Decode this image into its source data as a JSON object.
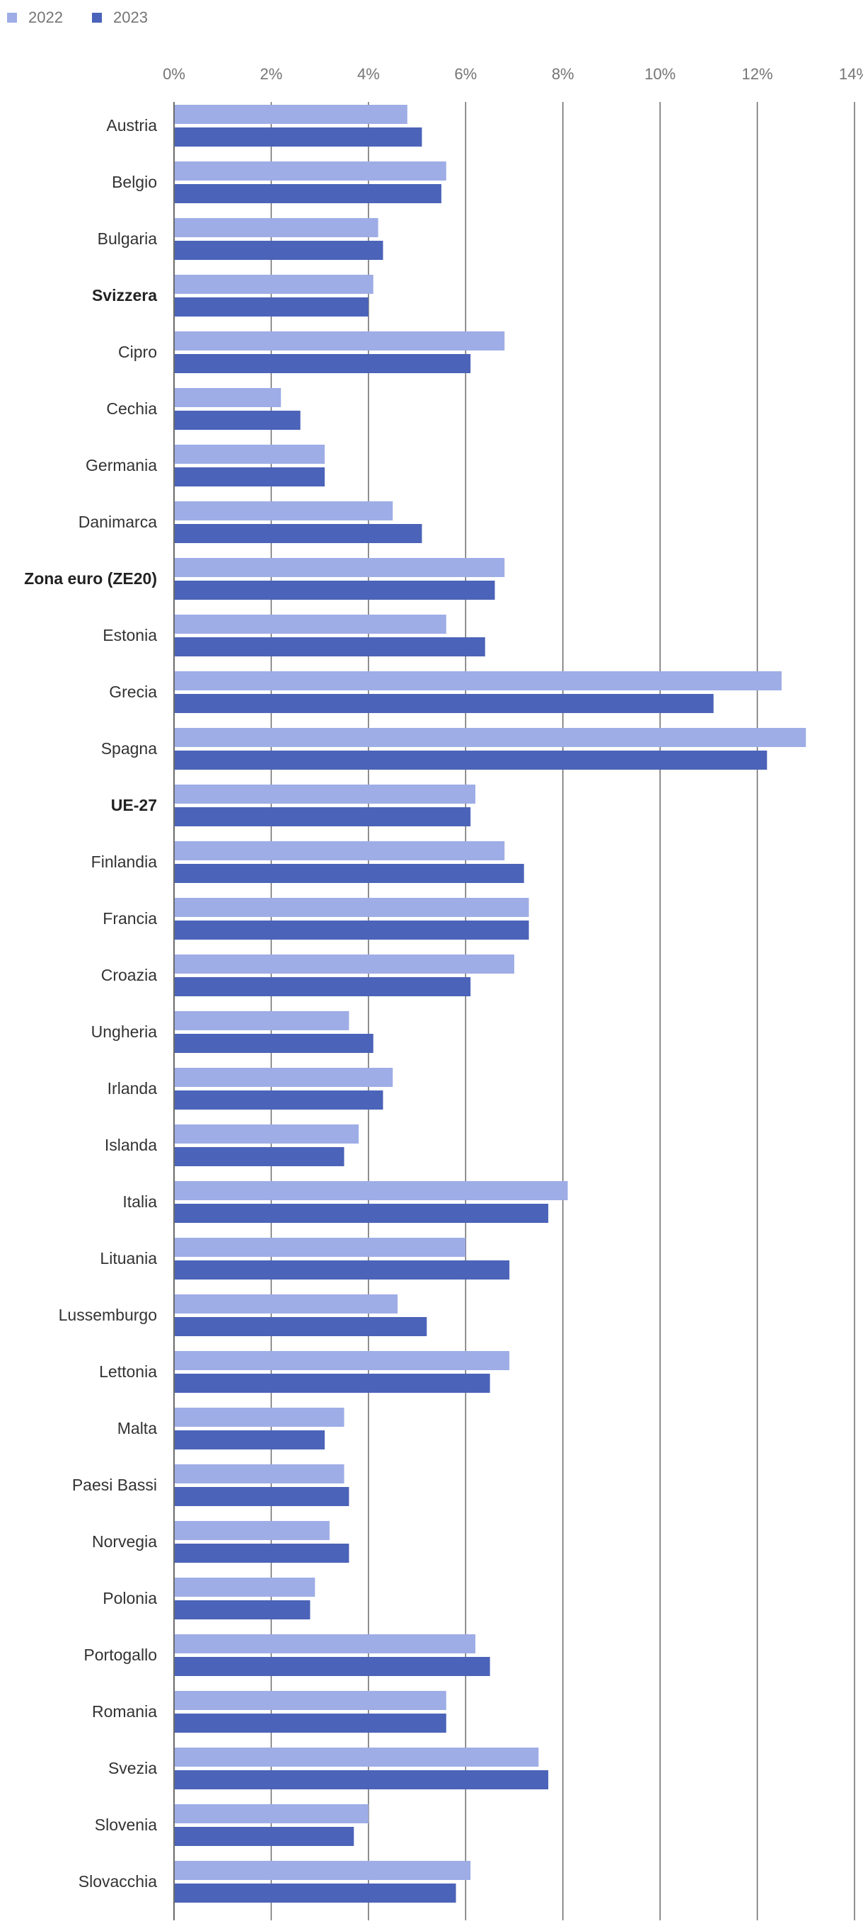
{
  "chart_data": {
    "type": "bar",
    "orientation": "horizontal",
    "title": "",
    "xlabel": "",
    "ylabel": "",
    "xlim": [
      0,
      14
    ],
    "x_ticks": [
      "0%",
      "2%",
      "4%",
      "6%",
      "8%",
      "10%",
      "12%",
      "14%"
    ],
    "legend": [
      "2022",
      "2023"
    ],
    "legend_position": "top-left",
    "colors": {
      "2022": "#9eade6",
      "2023": "#4b63b8",
      "grid": "#6b6b6b"
    },
    "categories": [
      "Austria",
      "Belgio",
      "Bulgaria",
      "Svizzera",
      "Cipro",
      "Cechia",
      "Germania",
      "Danimarca",
      "Zona euro (ZE20)",
      "Estonia",
      "Grecia",
      "Spagna",
      "UE-27",
      "Finlandia",
      "Francia",
      "Croazia",
      "Ungheria",
      "Irlanda",
      "Islanda",
      "Italia",
      "Lituania",
      "Lussemburgo",
      "Lettonia",
      "Malta",
      "Paesi Bassi",
      "Norvegia",
      "Polonia",
      "Portogallo",
      "Romania",
      "Svezia",
      "Slovenia",
      "Slovacchia"
    ],
    "bold_categories": [
      "Svizzera",
      "Zona euro (ZE20)",
      "UE-27"
    ],
    "series": [
      {
        "name": "2022",
        "values": [
          4.8,
          5.6,
          4.2,
          4.1,
          6.8,
          2.2,
          3.1,
          4.5,
          6.8,
          5.6,
          12.5,
          13.0,
          6.2,
          6.8,
          7.3,
          7.0,
          3.6,
          4.5,
          3.8,
          8.1,
          6.0,
          4.6,
          6.9,
          3.5,
          3.5,
          3.2,
          2.9,
          6.2,
          5.6,
          7.5,
          4.0,
          6.1
        ]
      },
      {
        "name": "2023",
        "values": [
          5.1,
          5.5,
          4.3,
          4.0,
          6.1,
          2.6,
          3.1,
          5.1,
          6.6,
          6.4,
          11.1,
          12.2,
          6.1,
          7.2,
          7.3,
          6.1,
          4.1,
          4.3,
          3.5,
          7.7,
          6.9,
          5.2,
          6.5,
          3.1,
          3.6,
          3.6,
          2.8,
          6.5,
          5.6,
          7.7,
          3.7,
          5.8
        ]
      }
    ]
  }
}
